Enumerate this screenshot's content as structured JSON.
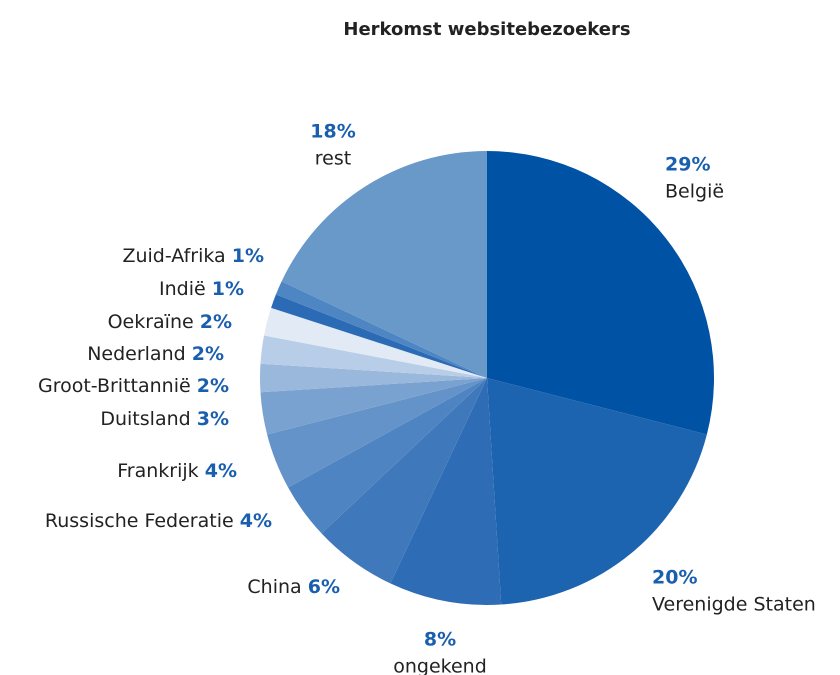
{
  "chart_data": {
    "type": "pie",
    "title": "Herkomst websitebezoekers",
    "categories": [
      "België",
      "Verenigde Staten",
      "ongekend",
      "China",
      "Russische Federatie",
      "Frankrijk",
      "Duitsland",
      "Groot-Brittannië",
      "Nederland",
      "Oekraïne",
      "Indië",
      "Zuid-Afrika",
      "rest"
    ],
    "values": [
      29,
      20,
      8,
      6,
      4,
      4,
      3,
      2,
      2,
      2,
      1,
      1,
      18
    ],
    "value_labels": [
      "29%",
      "20%",
      "8%",
      "6%",
      "4%",
      "4%",
      "3%",
      "2%",
      "2%",
      "2%",
      "1%",
      "1%",
      "18%"
    ],
    "colors": [
      "#0052a5",
      "#1c63b0",
      "#2e6db5",
      "#3f78bb",
      "#4f84c2",
      "#6493c9",
      "#7aa2d0",
      "#9ab8dc",
      "#b8cde7",
      "#e2eaf5",
      "#2b6ab4",
      "#4e86c4",
      "#6899c9"
    ]
  }
}
